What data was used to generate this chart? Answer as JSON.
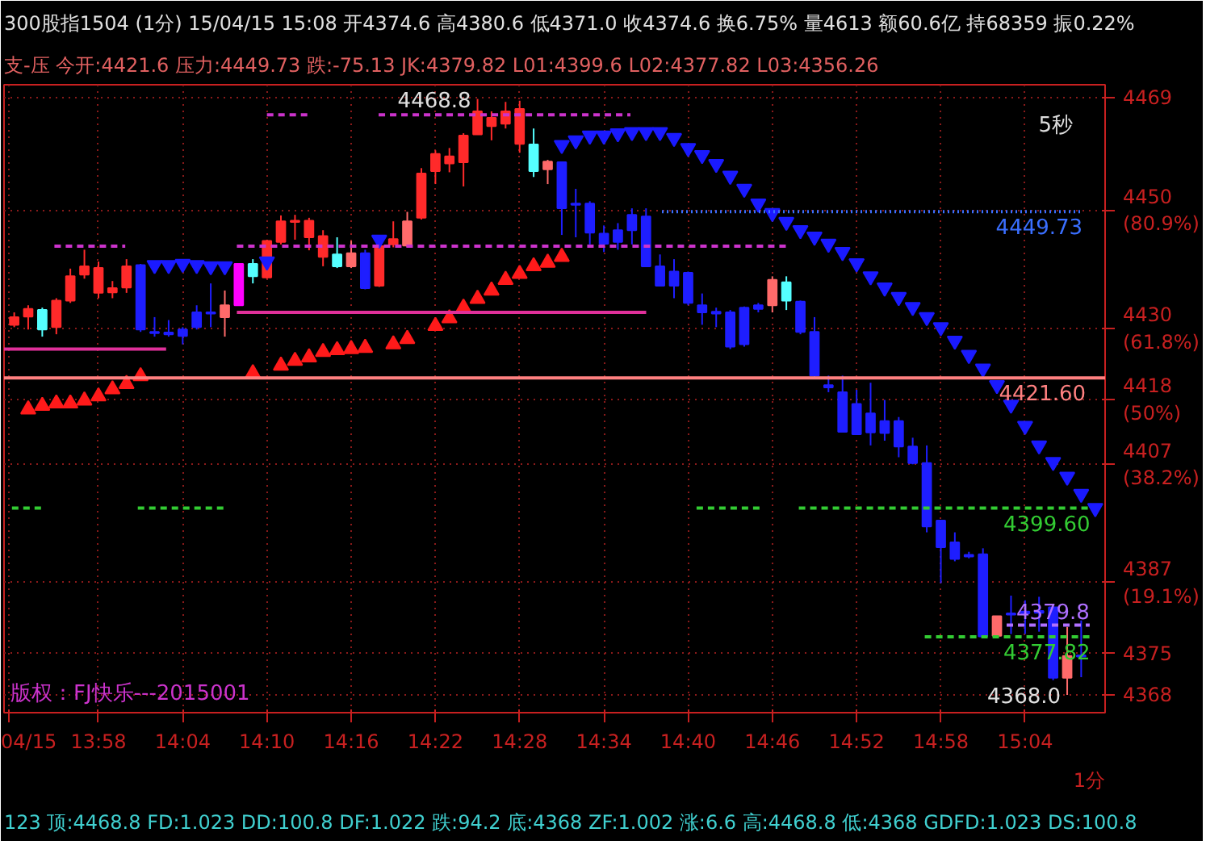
{
  "chart_data": {
    "type": "candlestick",
    "title": "300股指1504 (1分) 15/04/15 15:08 开4374.6 高4380.6 低4371.0 收4374.6 换6.75% 量4613 额60.6亿 持68359 振0.22%",
    "subtitle": "支-压 今开:4421.6 压力:4449.73 跌:-75.13 JK:4379.82 L01:4399.6 L02:4377.82 L03:4356.26",
    "xlabel": "1分",
    "x": [
      13.8667,
      13.8833,
      13.9,
      13.9167,
      13.9333,
      13.95,
      13.9667,
      13.9833,
      14.0,
      14.0167,
      14.0333,
      14.05,
      14.0667,
      14.0833,
      14.1,
      14.1167,
      14.1333,
      14.15,
      14.1667,
      14.1833,
      14.2,
      14.2167,
      14.2333,
      14.25,
      14.2667,
      14.2833,
      14.3,
      14.3167,
      14.3333,
      14.35,
      14.3667,
      14.3833,
      14.4,
      14.4167,
      14.4333,
      14.45,
      14.4667,
      14.4833,
      14.5,
      14.5167,
      14.5333,
      14.55,
      14.5667,
      14.5833,
      14.6,
      14.6167,
      14.6333,
      14.65,
      14.6667,
      14.6833,
      14.7,
      14.7167,
      14.7333,
      14.75,
      14.7667,
      14.7833,
      14.8,
      14.8167,
      14.8333,
      14.85,
      14.8667,
      14.8833,
      14.9,
      14.9167,
      14.9333,
      14.95,
      14.9667,
      14.9833,
      15.0,
      15.0167,
      15.0333,
      15.05,
      15.0667,
      15.0833,
      15.1,
      15.1167,
      15.1333
    ],
    "ohlc": [
      [
        4430.6,
        4432.7,
        4430.2,
        4431.9
      ],
      [
        4432.0,
        4433.9,
        4429.8,
        4433.3
      ],
      [
        4433.1,
        4433.5,
        4428.6,
        4429.8
      ],
      [
        4430.2,
        4435.1,
        4429.0,
        4434.7
      ],
      [
        4434.7,
        4440.1,
        4434.3,
        4438.8
      ],
      [
        4439.1,
        4443.3,
        4438.4,
        4440.5
      ],
      [
        4436.0,
        4441.3,
        4435.1,
        4440.2
      ],
      [
        4436.1,
        4438.0,
        4435.1,
        4436.8
      ],
      [
        4436.9,
        4441.7,
        4436.0,
        4440.5
      ],
      [
        4440.7,
        4440.9,
        4429.4,
        4429.8
      ],
      [
        4429.4,
        4431.9,
        4428.6,
        4429.2
      ],
      [
        4429.3,
        4431.4,
        4428.6,
        4429.0
      ],
      [
        4429.8,
        4430.2,
        4427.3,
        4428.7
      ],
      [
        4432.7,
        4433.9,
        4429.8,
        4430.2
      ],
      [
        4432.7,
        4437.6,
        4430.2,
        4432.5
      ],
      [
        4431.9,
        4436.4,
        4428.6,
        4433.9
      ],
      [
        4433.9,
        4440.9,
        4433.9,
        4440.9
      ],
      [
        4440.9,
        4441.7,
        4437.6,
        4438.8
      ],
      [
        4438.6,
        4445.0,
        4438.4,
        4444.8
      ],
      [
        4444.6,
        4449.1,
        4444.2,
        4448.1
      ],
      [
        4448.0,
        4449.2,
        4445.0,
        4448.2
      ],
      [
        4445.4,
        4448.7,
        4443.2,
        4448.2
      ],
      [
        4442.1,
        4446.6,
        4440.5,
        4445.6
      ],
      [
        4442.5,
        4445.4,
        4440.2,
        4440.5
      ],
      [
        4440.5,
        4444.8,
        4440.2,
        4442.7
      ],
      [
        4442.7,
        4443.3,
        4436.6,
        4436.8
      ],
      [
        4437.2,
        4444.0,
        4437.0,
        4443.9
      ],
      [
        4444.2,
        4448.1,
        4443.7,
        4445.1
      ],
      [
        4444.0,
        4449.7,
        4443.7,
        4448.1
      ],
      [
        4448.7,
        4457.1,
        4448.4,
        4456.2
      ],
      [
        4456.6,
        4460.1,
        4454.4,
        4459.5
      ],
      [
        4457.9,
        4460.5,
        4456.4,
        4459.1
      ],
      [
        4458.1,
        4463.0,
        4454.0,
        4462.6
      ],
      [
        4462.8,
        4468.8,
        4462.8,
        4466.7
      ],
      [
        4464.2,
        4466.7,
        4461.8,
        4465.6
      ],
      [
        4464.6,
        4468.3,
        4463.8,
        4466.7
      ],
      [
        4461.2,
        4468.5,
        4459.7,
        4467.1
      ],
      [
        4461.1,
        4463.8,
        4455.6,
        4456.6
      ],
      [
        4456.9,
        4458.5,
        4454.4,
        4458.2
      ],
      [
        4458.1,
        4458.1,
        4445.8,
        4450.3
      ],
      [
        4451.1,
        4453.6,
        4445.4,
        4450.9
      ],
      [
        4451.1,
        4451.5,
        4444.2,
        4446.2
      ],
      [
        4446.0,
        4447.4,
        4442.9,
        4444.3
      ],
      [
        4446.6,
        4447.8,
        4443.3,
        4444.6
      ],
      [
        4449.2,
        4450.3,
        4444.2,
        4446.6
      ],
      [
        4448.9,
        4450.3,
        4440.5,
        4440.5
      ],
      [
        4440.5,
        4442.5,
        4437.2,
        4437.2
      ],
      [
        4439.6,
        4441.7,
        4435.1,
        4437.2
      ],
      [
        4439.4,
        4439.6,
        4433.9,
        4434.3
      ],
      [
        4433.9,
        4435.9,
        4430.6,
        4432.7
      ],
      [
        4432.8,
        4433.5,
        4430.2,
        4432.5
      ],
      [
        4432.7,
        4433.1,
        4426.5,
        4426.9
      ],
      [
        4433.5,
        4433.7,
        4426.9,
        4427.3
      ],
      [
        4433.9,
        4434.3,
        4432.7,
        4433.3
      ],
      [
        4433.9,
        4438.8,
        4432.7,
        4438.2
      ],
      [
        4437.8,
        4438.8,
        4433.1,
        4434.7
      ],
      [
        4434.5,
        4434.7,
        4429.0,
        4429.4
      ],
      [
        4429.4,
        4431.9,
        4421.6,
        4422.0
      ],
      [
        4420.4,
        4422.0,
        4419.2,
        4420.0
      ],
      [
        4419.2,
        4422.0,
        4412.5,
        4412.5
      ],
      [
        4417.2,
        4419.6,
        4412.1,
        4412.1
      ],
      [
        4415.6,
        4420.8,
        4410.2,
        4412.4
      ],
      [
        4414.3,
        4417.9,
        4411.0,
        4412.3
      ],
      [
        4414.3,
        4415.0,
        4408.2,
        4410.0
      ],
      [
        4410.0,
        4411.5,
        4407.0,
        4407.2
      ],
      [
        4407.2,
        4410.2,
        4395.5,
        4396.5
      ],
      [
        4397.5,
        4397.5,
        4386.9,
        4393.0
      ],
      [
        4393.8,
        4395.5,
        4390.6,
        4391.0
      ],
      [
        4391.7,
        4392.2,
        4391.1,
        4391.4
      ],
      [
        4391.8,
        4392.8,
        4377.9,
        4377.9
      ],
      [
        4378.0,
        4381.3,
        4377.9,
        4381.3
      ],
      [
        4381.8,
        4384.8,
        4378.3,
        4381.6
      ],
      [
        4382.0,
        4384.0,
        4378.3,
        4381.9
      ],
      [
        4382.1,
        4384.6,
        4378.7,
        4382.0
      ],
      [
        4382.8,
        4382.8,
        4370.5,
        4370.9
      ],
      [
        4374.6,
        4379.5,
        4368.0,
        4370.9
      ],
      [
        4374.6,
        4380.6,
        4371.0,
        4374.6
      ]
    ],
    "colors": [
      "#ff2a2a",
      "#ff2a2a",
      "#55ffff",
      "#ff2a2a",
      "#ff2a2a",
      "#ff2a2a",
      "#ff2a2a",
      "#ff2a2a",
      "#ff2a2a",
      "#1e1eff",
      "#1e1eff",
      "#1e1eff",
      "#1e1eff",
      "#1e1eff",
      "#1e1eff",
      "#ff6a6a",
      "#ff00ff",
      "#55ffff",
      "#ff2a2a",
      "#ff2a2a",
      "#ff2a2a",
      "#ff2a2a",
      "#ff2a2a",
      "#55ffff",
      "#ff6a6a",
      "#1e1eff",
      "#ff2a2a",
      "#ff2a2a",
      "#ff6a6a",
      "#ff2a2a",
      "#ff2a2a",
      "#ff2a2a",
      "#ff2a2a",
      "#ff2a2a",
      "#ff2a2a",
      "#ff2a2a",
      "#ff2a2a",
      "#55ffff",
      "#ff6a6a",
      "#1e1eff",
      "#1e1eff",
      "#1e1eff",
      "#1e1eff",
      "#1e1eff",
      "#1e1eff",
      "#1e1eff",
      "#1e1eff",
      "#1e1eff",
      "#1e1eff",
      "#1e1eff",
      "#1e1eff",
      "#1e1eff",
      "#1e1eff",
      "#1e1eff",
      "#ff6a6a",
      "#55ffff",
      "#1e1eff",
      "#1e1eff",
      "#1e1eff",
      "#1e1eff",
      "#1e1eff",
      "#1e1eff",
      "#1e1eff",
      "#1e1eff",
      "#1e1eff",
      "#1e1eff",
      "#1e1eff",
      "#1e1eff",
      "#1e1eff",
      "#1e1eff",
      "#ff6a6a",
      "#1e1eff",
      "#1e1eff",
      "#1e1eff",
      "#1e1eff",
      "#ff6a6a",
      "#1e1eff"
    ],
    "series": [
      {
        "type": "scatter",
        "marker": "triangle",
        "color": "#ff1a1a",
        "x": [
          13.8833,
          13.9,
          13.9167,
          13.9333,
          13.95,
          13.9667,
          13.9833,
          14.0,
          14.0167,
          14.15,
          14.1833,
          14.2,
          14.2167,
          14.2333,
          14.25,
          14.2667,
          14.2833,
          14.3167,
          14.3333,
          14.3667,
          14.3833,
          14.4,
          14.4167,
          14.4333,
          14.45,
          14.4667,
          14.4833,
          14.5,
          14.5167
        ],
        "values": [
          4416.3,
          4416.9,
          4417.3,
          4417.3,
          4417.8,
          4418.5,
          4419.7,
          4420.6,
          4421.9,
          4422.4,
          4423.7,
          4424.5,
          4425.1,
          4426.0,
          4426.3,
          4426.5,
          4426.7,
          4427.3,
          4428.2,
          4430.4,
          4431.7,
          4433.5,
          4435.0,
          4436.4,
          4438.2,
          4439.2,
          4440.5,
          4441.1,
          4442.1
        ]
      },
      {
        "type": "scatter",
        "marker": "triangle_down",
        "color": "#1a1aff",
        "x": [
          14.0333,
          14.05,
          14.0667,
          14.0833,
          14.1,
          14.1167,
          14.1667,
          14.3,
          14.5167,
          14.5333,
          14.55,
          14.5667,
          14.5833,
          14.6,
          14.6167,
          14.6333,
          14.65,
          14.6667,
          14.6833,
          14.7,
          14.7167,
          14.7333,
          14.75,
          14.7667,
          14.7833,
          14.8,
          14.8167,
          14.8333,
          14.85,
          14.8667,
          14.8833,
          14.9,
          14.9167,
          14.9333,
          14.95,
          14.9667,
          14.9833,
          15.0,
          15.0167,
          15.0333,
          15.05,
          15.0667,
          15.0833,
          15.1,
          15.1167,
          15.1333,
          15.15
        ],
        "values": [
          4440.7,
          4440.7,
          4440.9,
          4440.7,
          4440.5,
          4440.5,
          4441.3,
          4445.0,
          4461.0,
          4461.8,
          4462.6,
          4462.6,
          4463.0,
          4463.2,
          4463.2,
          4463.2,
          4462.2,
          4460.5,
          4459.3,
          4457.8,
          4455.8,
          4453.6,
          4451.1,
          4449.5,
          4448.0,
          4446.6,
          4445.5,
          4444.3,
          4442.9,
          4441.0,
          4438.8,
          4436.9,
          4435.3,
          4433.6,
          4431.9,
          4430.2,
          4427.9,
          4425.5,
          4423.2,
          4420.4,
          4417.1,
          4413.5,
          4410.2,
          4407.4,
          4404.9,
          4402.0,
          4399.6
        ]
      },
      {
        "type": "line",
        "name": "4449.73",
        "color": "#3a6fff",
        "line_style": "dotted",
        "x": [
          14.6356,
          15.135
        ],
        "values": [
          4449.73,
          4449.73
        ]
      },
      {
        "type": "line",
        "name": "4399.60",
        "color": "#33cc33",
        "line_style": "dashed",
        "x": [
          13.864,
          13.9013,
          13.95,
          14.0134,
          14.1162,
          14.4,
          14.6767,
          14.7514,
          14.77,
          14.7981,
          15.144
        ],
        "values": [
          4399.6,
          4399.6,
          null,
          4399.6,
          4399.6,
          null,
          4399.6,
          4399.6,
          null,
          4399.6,
          4399.6
        ]
      },
      {
        "type": "line",
        "name": "4377.82",
        "color": "#33cc33",
        "line_style": "dashed",
        "x": [
          14.9476,
          15.144
        ],
        "values": [
          4377.82,
          4377.82
        ]
      },
      {
        "type": "line",
        "color": "#cc33cc",
        "line_style": "dashed",
        "x": [
          13.9144,
          13.9985,
          14.05,
          14.131,
          14.783
        ],
        "values": [
          4443.9,
          4443.9,
          null,
          4443.9,
          4443.9
        ]
      },
      {
        "type": "line",
        "color": "#cc33cc",
        "line_style": "dashed",
        "x": [
          14.1667,
          14.2152,
          14.25,
          14.2993,
          14.5982
        ],
        "values": [
          4466.1,
          4466.1,
          null,
          4466.1,
          4466.1
        ]
      },
      {
        "type": "line",
        "color": "#e0309a",
        "line_style": "solid",
        "x": [
          13.8546,
          14.047
        ],
        "values": [
          4426.5,
          4426.5
        ]
      },
      {
        "type": "line",
        "color": "#e0309a",
        "line_style": "solid",
        "x": [
          14.131,
          14.6169
        ],
        "values": [
          4432.7,
          4432.7
        ]
      },
      {
        "type": "line",
        "name": "4379.8",
        "color": "#b070ff",
        "line_style": "dashed",
        "x": [
          15.0448,
          15.1434
        ],
        "values": [
          4379.8,
          4379.8
        ]
      }
    ],
    "ref_lines": [
      {
        "axis": "y",
        "value": 4421.6,
        "label": "4421.60",
        "color": "#ff8080"
      }
    ],
    "annotations": [
      "版权：FJ快乐---2015001",
      "5秒",
      "123 顶:4468.8 FD:1.023 DD:100.8 DF:1.022 跌:94.2 底:4368 ZF:1.002 涨:6.6 高:4468.8 低:4368 GDFD:1.023 DS:100.8",
      {
        "text": "4468.8",
        "x": 14.4167,
        "y": 4468.8
      },
      {
        "text": "4368.0",
        "x": 15.1167,
        "y": 4368.0
      }
    ],
    "xlim": [
      13.8546,
      15.1617
    ],
    "ylim": [
      4365,
      4471.2
    ],
    "xticks": [
      {
        "value": 13.8602,
        "label": "04/15"
      },
      {
        "value": 13.9667,
        "label": "13:58"
      },
      {
        "value": 14.0667,
        "label": "14:04"
      },
      {
        "value": 14.1667,
        "label": "14:10"
      },
      {
        "value": 14.2667,
        "label": "14:16"
      },
      {
        "value": 14.3667,
        "label": "14:22"
      },
      {
        "value": 14.4667,
        "label": "14:28"
      },
      {
        "value": 14.5667,
        "label": "14:34"
      },
      {
        "value": 14.6667,
        "label": "14:40"
      },
      {
        "value": 14.7667,
        "label": "14:46"
      },
      {
        "value": 14.8667,
        "label": "14:52"
      },
      {
        "value": 14.9667,
        "label": "14:58"
      },
      {
        "value": 15.0667,
        "label": "15:04"
      }
    ],
    "yticks": [
      4469,
      {
        "value": 4450,
        "label": "4450\n(80.9%)"
      },
      {
        "value": 4430,
        "label": "4430\n(61.8%)"
      },
      {
        "value": 4418,
        "label": "4418\n(50%)"
      },
      {
        "value": 4407,
        "label": "4407\n(38.2%)"
      },
      {
        "value": 4387,
        "label": "4387\n(19.1%)"
      },
      4375,
      4368
    ],
    "grid": true
  }
}
